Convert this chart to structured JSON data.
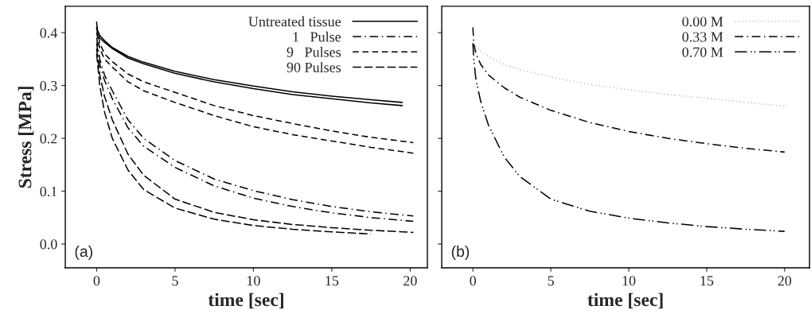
{
  "chart_data": [
    {
      "type": "line",
      "xlabel": "time [sec]",
      "ylabel": "Stress [MPa]",
      "xlim": [
        -2,
        21.1
      ],
      "ylim": [
        -0.045,
        0.45
      ],
      "xticks": [
        0,
        5,
        10,
        15,
        20
      ],
      "yticks": [
        {
          "value": 0,
          "label": "0.0"
        },
        0.1,
        0.2,
        0.3,
        0.4
      ],
      "legend": "top right",
      "grid": false,
      "annotations": [
        "(a)"
      ],
      "series": [
        {
          "name": "Untreated tissue",
          "color": "#000000",
          "line_style": "solid",
          "x": [
            0,
            0.05,
            0.2,
            0.5,
            1,
            2,
            3,
            5,
            7.5,
            10,
            12.5,
            15,
            17.5,
            19.5
          ],
          "values": [
            0.42,
            0.405,
            0.395,
            0.385,
            0.372,
            0.355,
            0.344,
            0.327,
            0.311,
            0.299,
            0.288,
            0.28,
            0.273,
            0.268
          ]
        },
        {
          "color": "#000000",
          "line_style": "solid",
          "x": [
            0,
            0.05,
            0.2,
            0.5,
            1,
            2,
            3,
            5,
            7.5,
            10,
            12.5,
            15,
            17.5,
            19.5
          ],
          "values": [
            0.41,
            0.4,
            0.39,
            0.382,
            0.37,
            0.352,
            0.341,
            0.323,
            0.307,
            0.294,
            0.283,
            0.275,
            0.267,
            0.262
          ]
        },
        {
          "name": "1   Pulse",
          "color": "#000000",
          "line_style": "dashdot",
          "x": [
            0,
            0.2,
            0.5,
            1,
            2,
            3,
            5,
            7.5,
            10,
            12.5,
            15,
            17.5,
            20.2
          ],
          "values": [
            0.39,
            0.35,
            0.32,
            0.29,
            0.235,
            0.2,
            0.158,
            0.123,
            0.101,
            0.084,
            0.071,
            0.061,
            0.053
          ]
        },
        {
          "color": "#000000",
          "line_style": "dashdot",
          "x": [
            0,
            0.2,
            0.5,
            1,
            2,
            3,
            5,
            7.5,
            10,
            12.5,
            15,
            17.5,
            20.2
          ],
          "values": [
            0.38,
            0.34,
            0.31,
            0.275,
            0.22,
            0.185,
            0.145,
            0.11,
            0.087,
            0.071,
            0.059,
            0.05,
            0.043
          ]
        },
        {
          "name": "9   Pulses",
          "color": "#000000",
          "line_style": "dashed",
          "x": [
            0,
            0.2,
            0.5,
            1,
            2,
            3,
            5,
            7.5,
            10,
            12.5,
            15,
            17.5,
            20.2
          ],
          "values": [
            0.41,
            0.38,
            0.36,
            0.345,
            0.322,
            0.307,
            0.287,
            0.262,
            0.243,
            0.228,
            0.214,
            0.202,
            0.192
          ]
        },
        {
          "color": "#000000",
          "line_style": "dashed",
          "x": [
            0,
            0.2,
            0.5,
            1,
            2,
            3,
            5,
            7.5,
            10,
            12.5,
            15,
            17.5,
            20.2
          ],
          "values": [
            0.4,
            0.37,
            0.35,
            0.335,
            0.307,
            0.29,
            0.268,
            0.243,
            0.222,
            0.207,
            0.195,
            0.183,
            0.172
          ]
        },
        {
          "name": "90 Pulses",
          "color": "#000000",
          "line_style": "longdash",
          "x": [
            0,
            0.2,
            0.5,
            1,
            2,
            3,
            5,
            7.5,
            10,
            12.5,
            15,
            17.5,
            20.2
          ],
          "values": [
            0.37,
            0.32,
            0.28,
            0.235,
            0.17,
            0.13,
            0.085,
            0.06,
            0.046,
            0.037,
            0.031,
            0.026,
            0.022
          ]
        },
        {
          "color": "#000000",
          "line_style": "longdash",
          "x": [
            0,
            0.2,
            0.5,
            1,
            2,
            3,
            5,
            7.5,
            10,
            12.5,
            15,
            17.5
          ],
          "values": [
            0.36,
            0.3,
            0.25,
            0.2,
            0.14,
            0.103,
            0.068,
            0.047,
            0.035,
            0.028,
            0.023,
            0.019
          ]
        }
      ]
    },
    {
      "type": "line",
      "xlabel": "time [sec]",
      "xlim": [
        -2,
        21.6
      ],
      "ylim": [
        -0.045,
        0.45
      ],
      "xticks": [
        0,
        5,
        10,
        15,
        20
      ],
      "yticks": [
        {
          "value": 0,
          "label": null
        },
        {
          "value": 0.1,
          "label": null
        },
        {
          "value": 0.2,
          "label": null
        },
        {
          "value": 0.3,
          "label": null
        },
        {
          "value": 0.4,
          "label": null
        }
      ],
      "tick_labels": "x",
      "legend": "top right",
      "grid": false,
      "annotations": [
        "(b)"
      ],
      "series": [
        {
          "name": "0.00 M",
          "color": "#c8c8c8",
          "line_style": "dotted",
          "x": [
            0,
            0.5,
            1,
            2,
            3,
            5,
            7.5,
            10,
            12.5,
            15,
            17.5,
            20
          ],
          "values": [
            0.38,
            0.365,
            0.355,
            0.34,
            0.33,
            0.316,
            0.302,
            0.292,
            0.283,
            0.276,
            0.268,
            0.261
          ]
        },
        {
          "name": "0.33 M",
          "color": "#000000",
          "line_style": "dashdot",
          "x": [
            0,
            0.05,
            0.2,
            0.5,
            1,
            2,
            3,
            5,
            7.5,
            10,
            12.5,
            15,
            17.5,
            20
          ],
          "values": [
            0.41,
            0.38,
            0.36,
            0.34,
            0.32,
            0.296,
            0.278,
            0.253,
            0.23,
            0.213,
            0.2,
            0.19,
            0.181,
            0.174
          ]
        },
        {
          "name": "0.70 M",
          "color": "#000000",
          "line_style": "longdashdot",
          "x": [
            0,
            0.05,
            0.2,
            0.5,
            1,
            2,
            3,
            5,
            7.5,
            10,
            12.5,
            15,
            17.5,
            20
          ],
          "values": [
            0.38,
            0.35,
            0.31,
            0.27,
            0.225,
            0.165,
            0.128,
            0.085,
            0.062,
            0.049,
            0.04,
            0.033,
            0.028,
            0.024
          ]
        }
      ]
    }
  ]
}
